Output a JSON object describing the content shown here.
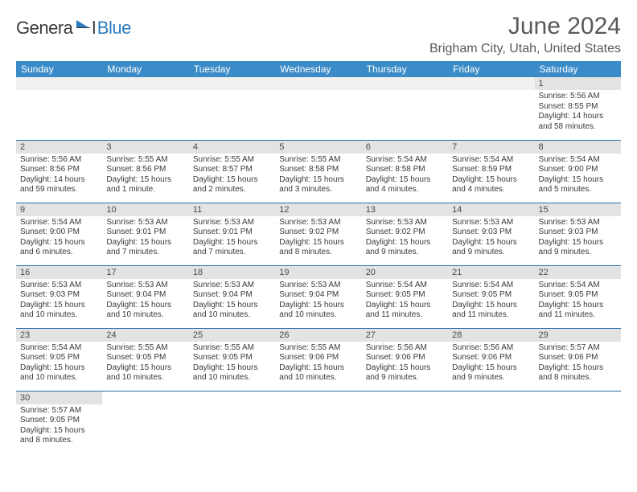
{
  "logo": {
    "text_general": "Genera",
    "text_l": "l",
    "text_blue": "Blue",
    "icon_fill": "#2b7bbf"
  },
  "title": "June 2024",
  "location": "Brigham City, Utah, United States",
  "colors": {
    "header_bg": "#3b8bc8",
    "header_text": "#ffffff",
    "daynum_bg": "#e3e3e3",
    "border": "#2b6fa8",
    "text": "#3a3a3a",
    "title_text": "#5a5a5a"
  },
  "day_names": [
    "Sunday",
    "Monday",
    "Tuesday",
    "Wednesday",
    "Thursday",
    "Friday",
    "Saturday"
  ],
  "weeks": [
    [
      {
        "n": "",
        "lines": []
      },
      {
        "n": "",
        "lines": []
      },
      {
        "n": "",
        "lines": []
      },
      {
        "n": "",
        "lines": []
      },
      {
        "n": "",
        "lines": []
      },
      {
        "n": "",
        "lines": []
      },
      {
        "n": "1",
        "lines": [
          "Sunrise: 5:56 AM",
          "Sunset: 8:55 PM",
          "Daylight: 14 hours",
          "and 58 minutes."
        ]
      }
    ],
    [
      {
        "n": "2",
        "lines": [
          "Sunrise: 5:56 AM",
          "Sunset: 8:56 PM",
          "Daylight: 14 hours",
          "and 59 minutes."
        ]
      },
      {
        "n": "3",
        "lines": [
          "Sunrise: 5:55 AM",
          "Sunset: 8:56 PM",
          "Daylight: 15 hours",
          "and 1 minute."
        ]
      },
      {
        "n": "4",
        "lines": [
          "Sunrise: 5:55 AM",
          "Sunset: 8:57 PM",
          "Daylight: 15 hours",
          "and 2 minutes."
        ]
      },
      {
        "n": "5",
        "lines": [
          "Sunrise: 5:55 AM",
          "Sunset: 8:58 PM",
          "Daylight: 15 hours",
          "and 3 minutes."
        ]
      },
      {
        "n": "6",
        "lines": [
          "Sunrise: 5:54 AM",
          "Sunset: 8:58 PM",
          "Daylight: 15 hours",
          "and 4 minutes."
        ]
      },
      {
        "n": "7",
        "lines": [
          "Sunrise: 5:54 AM",
          "Sunset: 8:59 PM",
          "Daylight: 15 hours",
          "and 4 minutes."
        ]
      },
      {
        "n": "8",
        "lines": [
          "Sunrise: 5:54 AM",
          "Sunset: 9:00 PM",
          "Daylight: 15 hours",
          "and 5 minutes."
        ]
      }
    ],
    [
      {
        "n": "9",
        "lines": [
          "Sunrise: 5:54 AM",
          "Sunset: 9:00 PM",
          "Daylight: 15 hours",
          "and 6 minutes."
        ]
      },
      {
        "n": "10",
        "lines": [
          "Sunrise: 5:53 AM",
          "Sunset: 9:01 PM",
          "Daylight: 15 hours",
          "and 7 minutes."
        ]
      },
      {
        "n": "11",
        "lines": [
          "Sunrise: 5:53 AM",
          "Sunset: 9:01 PM",
          "Daylight: 15 hours",
          "and 7 minutes."
        ]
      },
      {
        "n": "12",
        "lines": [
          "Sunrise: 5:53 AM",
          "Sunset: 9:02 PM",
          "Daylight: 15 hours",
          "and 8 minutes."
        ]
      },
      {
        "n": "13",
        "lines": [
          "Sunrise: 5:53 AM",
          "Sunset: 9:02 PM",
          "Daylight: 15 hours",
          "and 9 minutes."
        ]
      },
      {
        "n": "14",
        "lines": [
          "Sunrise: 5:53 AM",
          "Sunset: 9:03 PM",
          "Daylight: 15 hours",
          "and 9 minutes."
        ]
      },
      {
        "n": "15",
        "lines": [
          "Sunrise: 5:53 AM",
          "Sunset: 9:03 PM",
          "Daylight: 15 hours",
          "and 9 minutes."
        ]
      }
    ],
    [
      {
        "n": "16",
        "lines": [
          "Sunrise: 5:53 AM",
          "Sunset: 9:03 PM",
          "Daylight: 15 hours",
          "and 10 minutes."
        ]
      },
      {
        "n": "17",
        "lines": [
          "Sunrise: 5:53 AM",
          "Sunset: 9:04 PM",
          "Daylight: 15 hours",
          "and 10 minutes."
        ]
      },
      {
        "n": "18",
        "lines": [
          "Sunrise: 5:53 AM",
          "Sunset: 9:04 PM",
          "Daylight: 15 hours",
          "and 10 minutes."
        ]
      },
      {
        "n": "19",
        "lines": [
          "Sunrise: 5:53 AM",
          "Sunset: 9:04 PM",
          "Daylight: 15 hours",
          "and 10 minutes."
        ]
      },
      {
        "n": "20",
        "lines": [
          "Sunrise: 5:54 AM",
          "Sunset: 9:05 PM",
          "Daylight: 15 hours",
          "and 11 minutes."
        ]
      },
      {
        "n": "21",
        "lines": [
          "Sunrise: 5:54 AM",
          "Sunset: 9:05 PM",
          "Daylight: 15 hours",
          "and 11 minutes."
        ]
      },
      {
        "n": "22",
        "lines": [
          "Sunrise: 5:54 AM",
          "Sunset: 9:05 PM",
          "Daylight: 15 hours",
          "and 11 minutes."
        ]
      }
    ],
    [
      {
        "n": "23",
        "lines": [
          "Sunrise: 5:54 AM",
          "Sunset: 9:05 PM",
          "Daylight: 15 hours",
          "and 10 minutes."
        ]
      },
      {
        "n": "24",
        "lines": [
          "Sunrise: 5:55 AM",
          "Sunset: 9:05 PM",
          "Daylight: 15 hours",
          "and 10 minutes."
        ]
      },
      {
        "n": "25",
        "lines": [
          "Sunrise: 5:55 AM",
          "Sunset: 9:05 PM",
          "Daylight: 15 hours",
          "and 10 minutes."
        ]
      },
      {
        "n": "26",
        "lines": [
          "Sunrise: 5:55 AM",
          "Sunset: 9:06 PM",
          "Daylight: 15 hours",
          "and 10 minutes."
        ]
      },
      {
        "n": "27",
        "lines": [
          "Sunrise: 5:56 AM",
          "Sunset: 9:06 PM",
          "Daylight: 15 hours",
          "and 9 minutes."
        ]
      },
      {
        "n": "28",
        "lines": [
          "Sunrise: 5:56 AM",
          "Sunset: 9:06 PM",
          "Daylight: 15 hours",
          "and 9 minutes."
        ]
      },
      {
        "n": "29",
        "lines": [
          "Sunrise: 5:57 AM",
          "Sunset: 9:06 PM",
          "Daylight: 15 hours",
          "and 8 minutes."
        ]
      }
    ],
    [
      {
        "n": "30",
        "lines": [
          "Sunrise: 5:57 AM",
          "Sunset: 9:05 PM",
          "Daylight: 15 hours",
          "and 8 minutes."
        ]
      },
      {
        "n": "",
        "lines": []
      },
      {
        "n": "",
        "lines": []
      },
      {
        "n": "",
        "lines": []
      },
      {
        "n": "",
        "lines": []
      },
      {
        "n": "",
        "lines": []
      },
      {
        "n": "",
        "lines": []
      }
    ]
  ]
}
